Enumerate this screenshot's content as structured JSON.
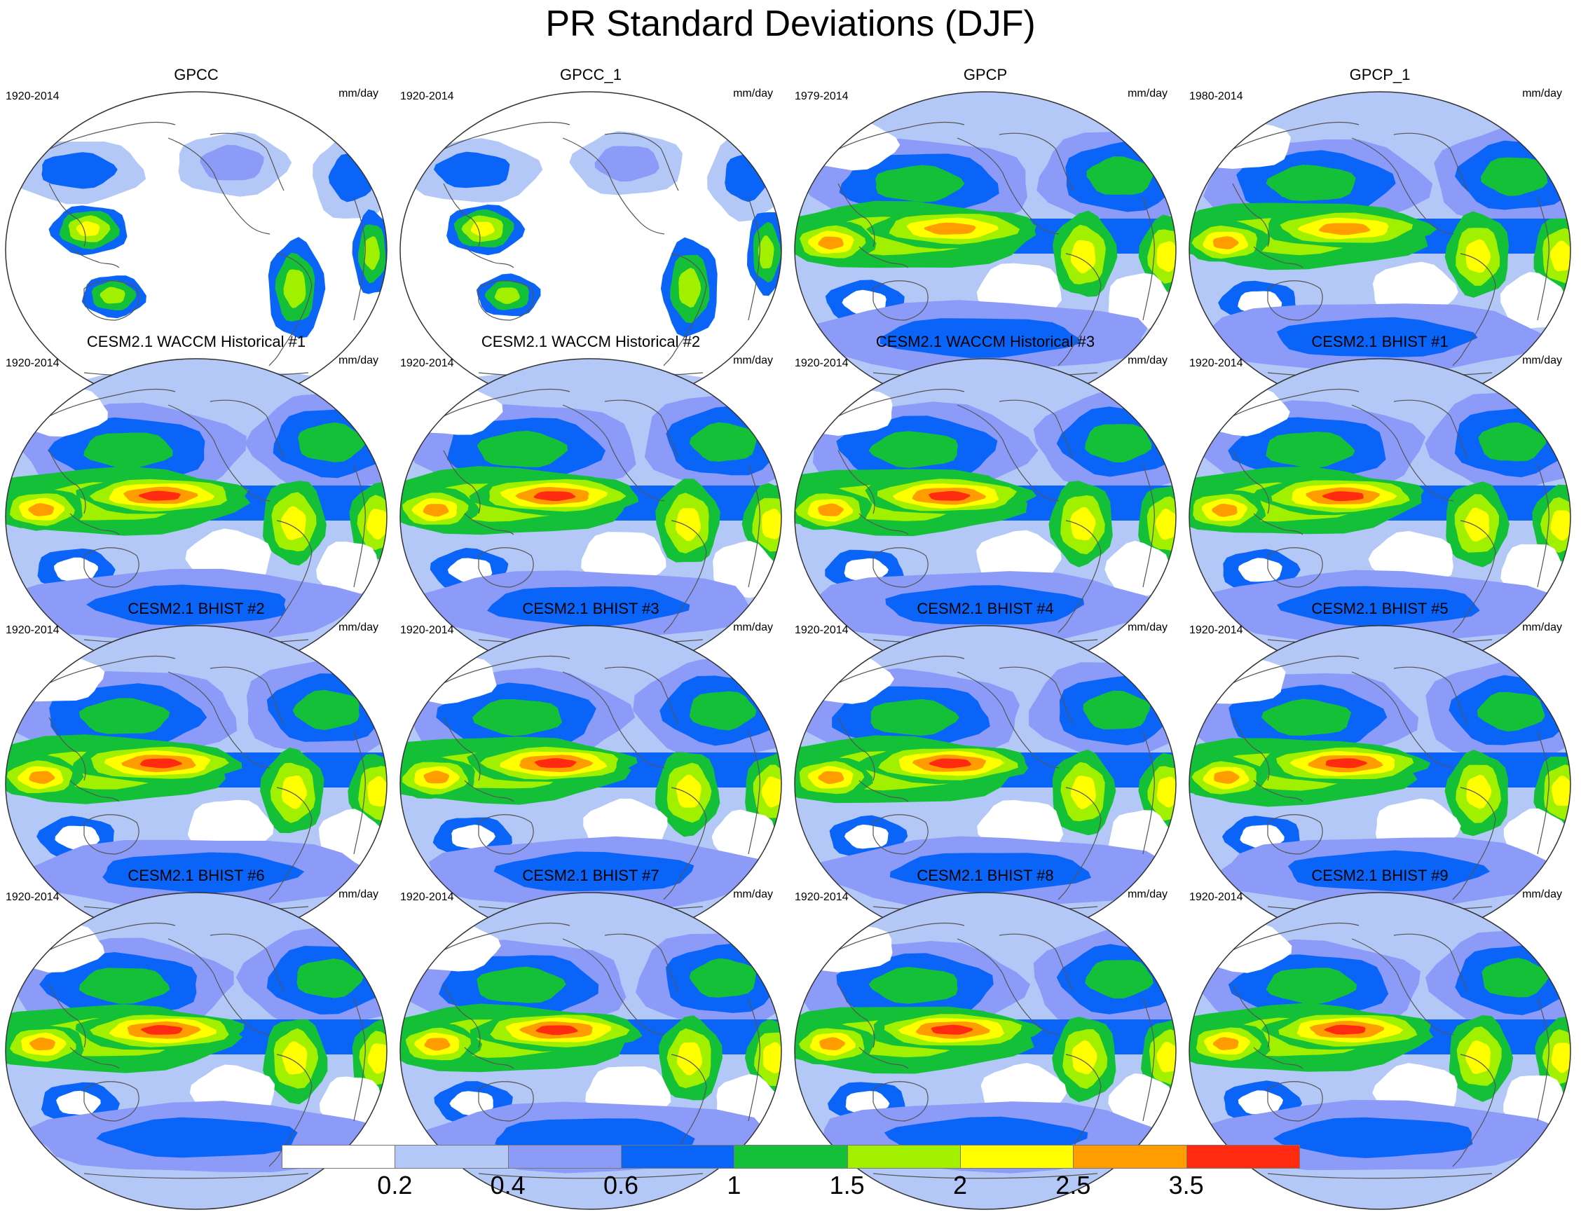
{
  "title": "PR Standard Deviations (DJF)",
  "panels": [
    {
      "title": "GPCC",
      "period": "1920-2014",
      "units": "mm/day",
      "kind": "land"
    },
    {
      "title": "GPCC_1",
      "period": "1920-2014",
      "units": "mm/day",
      "kind": "land"
    },
    {
      "title": "GPCP",
      "period": "1979-2014",
      "units": "mm/day",
      "kind": "obs"
    },
    {
      "title": "GPCP_1",
      "period": "1980-2014",
      "units": "mm/day",
      "kind": "obs"
    },
    {
      "title": "CESM2.1 WACCM Historical #1",
      "period": "1920-2014",
      "units": "mm/day",
      "kind": "model"
    },
    {
      "title": "CESM2.1 WACCM Historical #2",
      "period": "1920-2014",
      "units": "mm/day",
      "kind": "model"
    },
    {
      "title": "CESM2.1 WACCM Historical #3",
      "period": "1920-2014",
      "units": "mm/day",
      "kind": "model"
    },
    {
      "title": "CESM2.1 BHIST #1",
      "period": "1920-2014",
      "units": "mm/day",
      "kind": "model"
    },
    {
      "title": "CESM2.1 BHIST #2",
      "period": "1920-2014",
      "units": "mm/day",
      "kind": "model"
    },
    {
      "title": "CESM2.1 BHIST #3",
      "period": "1920-2014",
      "units": "mm/day",
      "kind": "model"
    },
    {
      "title": "CESM2.1 BHIST #4",
      "period": "1920-2014",
      "units": "mm/day",
      "kind": "model"
    },
    {
      "title": "CESM2.1 BHIST #5",
      "period": "1920-2014",
      "units": "mm/day",
      "kind": "model"
    },
    {
      "title": "CESM2.1 BHIST #6",
      "period": "1920-2014",
      "units": "mm/day",
      "kind": "model"
    },
    {
      "title": "CESM2.1 BHIST #7",
      "period": "1920-2014",
      "units": "mm/day",
      "kind": "model"
    },
    {
      "title": "CESM2.1 BHIST #8",
      "period": "1920-2014",
      "units": "mm/day",
      "kind": "model"
    },
    {
      "title": "CESM2.1 BHIST #9",
      "period": "1920-2014",
      "units": "mm/day",
      "kind": "model"
    }
  ],
  "colorbar": {
    "colors": [
      "#ffffff",
      "#b4c8f8",
      "#8c9af8",
      "#0a64f8",
      "#14c038",
      "#a0f000",
      "#ffff00",
      "#ff9c00",
      "#ff2a10"
    ],
    "labels": [
      "0.2",
      "0.4",
      "0.6",
      "1",
      "1.5",
      "2",
      "2.5",
      "3.5"
    ]
  }
}
